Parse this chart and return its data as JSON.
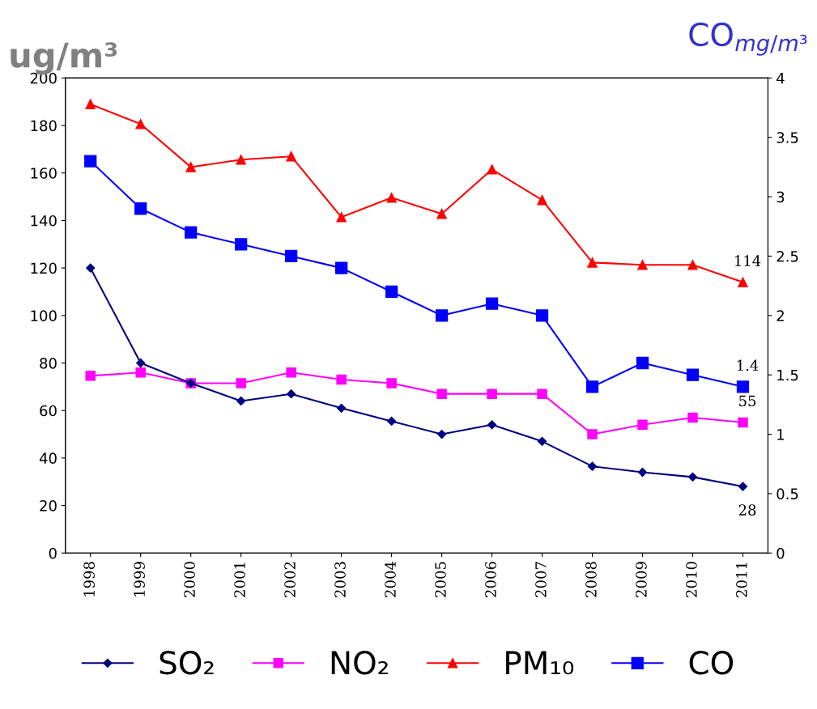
{
  "chart_data": {
    "type": "line",
    "ylabel": "ug/m³",
    "y2label": "CO$_{mg/m³}$",
    "categories": [
      "1998",
      "1999",
      "2000",
      "2001",
      "2002",
      "2003",
      "2004",
      "2005",
      "2006",
      "2007",
      "2008",
      "2009",
      "2010",
      "2011"
    ],
    "series": [
      {
        "name": "SO₂",
        "color": "#000080",
        "marker": "diamond",
        "values": [
          120,
          80,
          71.5,
          64,
          67,
          61,
          55.5,
          50,
          54,
          47,
          36.5,
          34,
          32,
          28
        ],
        "value_labels": [
          null,
          null,
          null,
          null,
          null,
          null,
          null,
          null,
          null,
          null,
          null,
          null,
          null,
          "28"
        ]
      },
      {
        "name": "NO₂",
        "color": "#ff00ff",
        "marker": "square",
        "values": [
          74.6,
          76,
          71.5,
          71.5,
          76,
          73,
          71.5,
          67,
          67,
          67,
          50,
          54,
          57,
          55
        ],
        "value_labels": [
          null,
          null,
          null,
          null,
          null,
          null,
          null,
          null,
          null,
          null,
          null,
          null,
          null,
          "55"
        ]
      },
      {
        "name": "PM₁₀",
        "color": "#ff0000",
        "marker": "triangle",
        "values": [
          189,
          180.6,
          162.5,
          165.6,
          167,
          141.4,
          149.6,
          142.8,
          161.5,
          148.6,
          122.3,
          121.3,
          121.3,
          114
        ],
        "value_labels": [
          null,
          null,
          null,
          null,
          null,
          null,
          null,
          null,
          null,
          null,
          null,
          null,
          null,
          "114"
        ]
      },
      {
        "name": "CO",
        "color": "#0000ff",
        "marker": "square",
        "axis": "y2",
        "values": [
          3.3,
          2.9,
          2.7,
          2.6,
          2.5,
          2.4,
          2.2,
          2.0,
          2.1,
          2.0,
          1.4,
          1.6,
          1.5,
          1.4
        ],
        "value_labels": [
          null,
          null,
          null,
          null,
          null,
          null,
          null,
          null,
          null,
          null,
          null,
          null,
          null,
          "1.4"
        ]
      }
    ],
    "ylim": [
      0,
      200
    ],
    "yticks": [
      0,
      20,
      40,
      60,
      80,
      100,
      120,
      140,
      160,
      180,
      200
    ],
    "y2lim": [
      0,
      4
    ],
    "y2ticks": [
      0,
      0.5,
      1,
      1.5,
      2,
      2.5,
      3,
      3.5,
      4
    ],
    "grid": false,
    "legend": "bottom"
  }
}
